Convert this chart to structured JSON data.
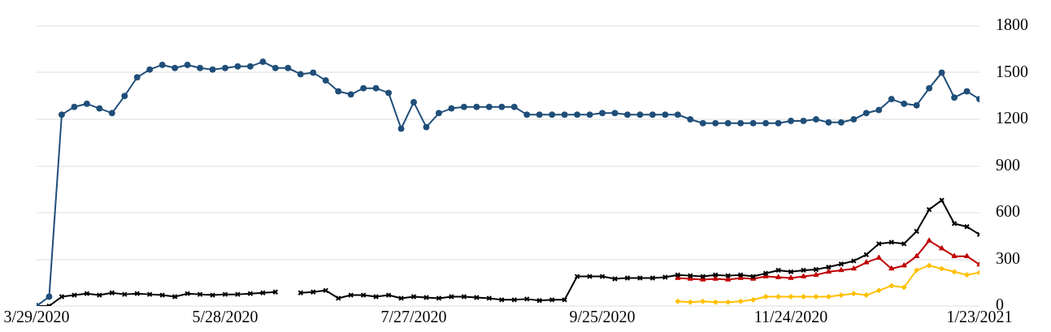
{
  "chart_data": {
    "type": "line",
    "x": [
      "2020-03-29",
      "2020-04-02",
      "2020-04-06",
      "2020-04-10",
      "2020-04-14",
      "2020-04-18",
      "2020-04-22",
      "2020-04-26",
      "2020-04-30",
      "2020-05-04",
      "2020-05-08",
      "2020-05-12",
      "2020-05-16",
      "2020-05-20",
      "2020-05-24",
      "2020-05-28",
      "2020-06-01",
      "2020-06-05",
      "2020-06-09",
      "2020-06-13",
      "2020-06-17",
      "2020-06-21",
      "2020-06-25",
      "2020-06-29",
      "2020-07-03",
      "2020-07-07",
      "2020-07-11",
      "2020-07-15",
      "2020-07-19",
      "2020-07-23",
      "2020-07-27",
      "2020-07-31",
      "2020-08-04",
      "2020-08-08",
      "2020-08-12",
      "2020-08-16",
      "2020-08-20",
      "2020-08-24",
      "2020-08-28",
      "2020-09-01",
      "2020-09-05",
      "2020-09-09",
      "2020-09-13",
      "2020-09-17",
      "2020-09-21",
      "2020-09-25",
      "2020-09-29",
      "2020-10-03",
      "2020-10-07",
      "2020-10-11",
      "2020-10-15",
      "2020-10-19",
      "2020-10-23",
      "2020-10-27",
      "2020-10-31",
      "2020-11-04",
      "2020-11-08",
      "2020-11-12",
      "2020-11-16",
      "2020-11-20",
      "2020-11-24",
      "2020-11-28",
      "2020-12-02",
      "2020-12-06",
      "2020-12-10",
      "2020-12-14",
      "2020-12-18",
      "2020-12-22",
      "2020-12-26",
      "2020-12-30",
      "2021-01-03",
      "2021-01-07",
      "2021-01-11",
      "2021-01-15",
      "2021-01-19",
      "2021-01-23"
    ],
    "series": [
      {
        "color": "#1f4e79",
        "marker": "circle",
        "values": [
          0,
          60,
          1230,
          1280,
          1300,
          1270,
          1240,
          1350,
          1470,
          1520,
          1550,
          1530,
          1550,
          1530,
          1520,
          1530,
          1540,
          1540,
          1570,
          1530,
          1530,
          1490,
          1500,
          1450,
          1380,
          1360,
          1400,
          1400,
          1370,
          1140,
          1310,
          1150,
          1240,
          1270,
          1280,
          1280,
          1280,
          1280,
          1280,
          1230,
          1230,
          1230,
          1230,
          1230,
          1230,
          1240,
          1240,
          1230,
          1230,
          1230,
          1230,
          1230,
          1200,
          1175,
          1175,
          1175,
          1175,
          1175,
          1175,
          1175,
          1190,
          1190,
          1200,
          1180,
          1180,
          1200,
          1240,
          1260,
          1330,
          1300,
          1290,
          1400,
          1500,
          1340,
          1380,
          1330
        ]
      },
      {
        "color": "#000000",
        "marker": "cross",
        "values": [
          0,
          0,
          60,
          70,
          80,
          70,
          85,
          75,
          80,
          75,
          70,
          60,
          80,
          75,
          70,
          75,
          75,
          80,
          85,
          90,
          null,
          85,
          90,
          100,
          50,
          70,
          70,
          60,
          70,
          50,
          60,
          55,
          50,
          60,
          60,
          55,
          50,
          40,
          40,
          45,
          35,
          40,
          40,
          190,
          190,
          190,
          175,
          180,
          180,
          180,
          185,
          200,
          195,
          190,
          200,
          195,
          200,
          190,
          210,
          230,
          220,
          230,
          235,
          250,
          270,
          290,
          330,
          400,
          410,
          400,
          480,
          620,
          680,
          530,
          510,
          460
        ]
      },
      {
        "color": "#c00000",
        "marker": "triangle",
        "values": [
          null,
          null,
          null,
          null,
          null,
          null,
          null,
          null,
          null,
          null,
          null,
          null,
          null,
          null,
          null,
          null,
          null,
          null,
          null,
          null,
          null,
          null,
          null,
          null,
          null,
          null,
          null,
          null,
          null,
          null,
          null,
          null,
          null,
          null,
          null,
          null,
          null,
          null,
          null,
          null,
          null,
          null,
          null,
          null,
          null,
          null,
          null,
          null,
          null,
          null,
          null,
          180,
          175,
          170,
          175,
          170,
          180,
          175,
          190,
          185,
          180,
          190,
          200,
          220,
          230,
          240,
          280,
          310,
          240,
          260,
          320,
          420,
          370,
          320,
          320,
          266
        ]
      },
      {
        "color": "#ffc000",
        "marker": "diamond",
        "values": [
          null,
          null,
          null,
          null,
          null,
          null,
          null,
          null,
          null,
          null,
          null,
          null,
          null,
          null,
          null,
          null,
          null,
          null,
          null,
          null,
          null,
          null,
          null,
          null,
          null,
          null,
          null,
          null,
          null,
          null,
          null,
          null,
          null,
          null,
          null,
          null,
          null,
          null,
          null,
          null,
          null,
          null,
          null,
          null,
          null,
          null,
          null,
          null,
          null,
          null,
          null,
          30,
          25,
          30,
          25,
          25,
          30,
          40,
          60,
          60,
          60,
          60,
          60,
          60,
          70,
          80,
          70,
          100,
          130,
          120,
          230,
          260,
          240,
          220,
          200,
          215
        ]
      }
    ],
    "xlim": [
      "2020-03-29",
      "2021-01-23"
    ],
    "xticks": [
      {
        "value": "2020-03-29",
        "label": "3/29/2020"
      },
      {
        "value": "2020-05-28",
        "label": "5/28/2020"
      },
      {
        "value": "2020-07-27",
        "label": "7/27/2020"
      },
      {
        "value": "2020-09-25",
        "label": "9/25/2020"
      },
      {
        "value": "2020-11-24",
        "label": "11/24/2020"
      },
      {
        "value": "2021-01-23",
        "label": "1/23/2021"
      }
    ],
    "ylim": [
      0,
      1800
    ],
    "yticks": [
      0,
      300,
      600,
      900,
      1200,
      1500,
      1800
    ],
    "grid": "y",
    "legend": false
  }
}
